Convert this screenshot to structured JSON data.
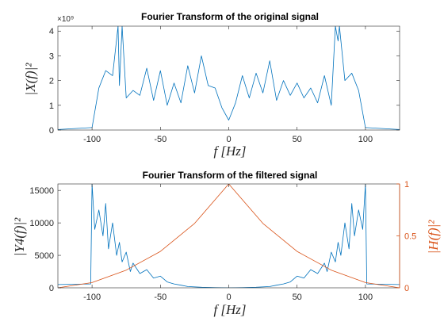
{
  "colors": {
    "signal": "#0072bd",
    "filter": "#d95319",
    "axis": "#262626"
  },
  "chart_data": [
    {
      "type": "line",
      "title": "Fourier Transform of the original signal",
      "xlabel": "f [Hz]",
      "ylabel": "|X(f)|²",
      "xlim": [
        -125,
        125
      ],
      "ylim": [
        0,
        4200000000.0
      ],
      "x_ticks": [
        "-100",
        "-50",
        "0",
        "50",
        "100"
      ],
      "y_ticks": [
        "0",
        "1",
        "2",
        "3",
        "4"
      ],
      "y_exponent": "×10⁹",
      "grid": false,
      "series": [
        {
          "x": [
            -125,
            -100,
            -95,
            -90,
            -85,
            -81,
            -80,
            -78,
            -75,
            -70,
            -65,
            -60,
            -55,
            -50,
            -45,
            -40,
            -35,
            -30,
            -25,
            -20,
            -15,
            -10,
            -5,
            0,
            5,
            10,
            15,
            20,
            25,
            30,
            35,
            40,
            45,
            50,
            55,
            60,
            65,
            70,
            75,
            78,
            80,
            81,
            85,
            90,
            95,
            100,
            125
          ],
          "y": [
            20000000.0,
            100000000.0,
            1700000000.0,
            2400000000.0,
            2200000000.0,
            4200000000.0,
            1800000000.0,
            4200000000.0,
            1300000000.0,
            1600000000.0,
            1400000000.0,
            2500000000.0,
            1200000000.0,
            2400000000.0,
            1000000000.0,
            1900000000.0,
            1100000000.0,
            2600000000.0,
            1500000000.0,
            3000000000.0,
            1800000000.0,
            1700000000.0,
            900000000.0,
            400000000.0,
            1100000000.0,
            2200000000.0,
            1300000000.0,
            2300000000.0,
            1500000000.0,
            2800000000.0,
            1200000000.0,
            2000000000.0,
            1400000000.0,
            1900000000.0,
            1300000000.0,
            1700000000.0,
            1100000000.0,
            2200000000.0,
            1000000000.0,
            4200000000.0,
            3600000000.0,
            4200000000.0,
            2000000000.0,
            2300000000.0,
            1600000000.0,
            100000000.0,
            20000000.0
          ]
        }
      ]
    },
    {
      "type": "line",
      "title": "Fourier Transform of the filtered signal",
      "xlabel": "f [Hz]",
      "ylabel": "|Y4(f)|²",
      "ylabel_right": "|H(f)|²",
      "xlim": [
        -125,
        125
      ],
      "ylim": [
        0,
        16000
      ],
      "ylim_right": [
        0,
        1
      ],
      "x_ticks": [
        "-100",
        "-50",
        "0",
        "50",
        "100"
      ],
      "y_ticks": [
        "0",
        "5000",
        "10000",
        "15000"
      ],
      "y_ticks_right": [
        "0",
        "0.5",
        "1"
      ],
      "grid": false,
      "series": [
        {
          "axis": "left",
          "x": [
            -125,
            -101,
            -100,
            -98,
            -95,
            -92,
            -90,
            -88,
            -85,
            -82,
            -80,
            -78,
            -75,
            -72,
            -70,
            -65,
            -60,
            -55,
            -50,
            -45,
            -40,
            -35,
            -30,
            -20,
            -10,
            0,
            10,
            20,
            30,
            35,
            40,
            45,
            50,
            55,
            60,
            65,
            70,
            72,
            75,
            78,
            80,
            82,
            85,
            88,
            90,
            92,
            95,
            98,
            100,
            101,
            125
          ],
          "y": [
            500,
            600,
            16000,
            9000,
            12000,
            8000,
            13000,
            6000,
            10000,
            5000,
            7000,
            4000,
            5500,
            2500,
            3800,
            2200,
            2800,
            1500,
            1800,
            900,
            600,
            400,
            200,
            80,
            20,
            0,
            20,
            80,
            200,
            400,
            600,
            900,
            1800,
            1500,
            2800,
            2200,
            3800,
            2500,
            5500,
            4000,
            7000,
            5000,
            10000,
            6000,
            13000,
            8000,
            12000,
            9000,
            16000,
            600,
            500
          ]
        },
        {
          "axis": "right",
          "x": [
            -125,
            -100,
            -75,
            -50,
            -25,
            0,
            25,
            50,
            75,
            100,
            125
          ],
          "y": [
            0,
            0.05,
            0.17,
            0.35,
            0.62,
            1,
            0.62,
            0.35,
            0.17,
            0.05,
            0
          ]
        }
      ]
    }
  ]
}
